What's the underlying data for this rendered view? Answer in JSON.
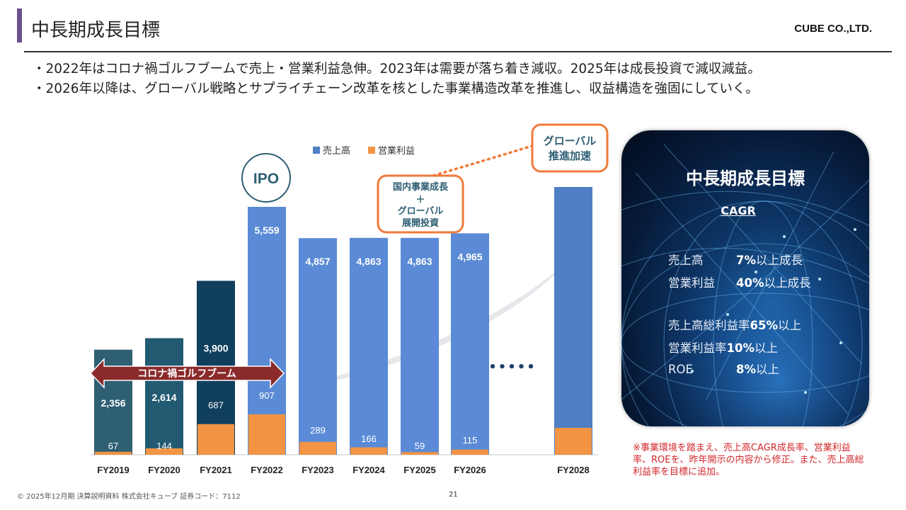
{
  "header": {
    "title": "中長期成長目標",
    "company": "CUBE CO.,LTD."
  },
  "bullets": [
    "・2022年はコロナ禍ゴルフブームで売上・営業利益急伸。2023年は需要が落ち着き減収。2025年は成長投資で減収減益。",
    "・2026年以降は、グローバル戦略とサプライチェーン改革を核とした事業構造改革を推進し、収益構造を強固にしていく。"
  ],
  "chart_data": {
    "type": "bar",
    "categories": [
      "FY2019",
      "FY2020",
      "FY2021",
      "FY2022",
      "FY2023",
      "FY2024",
      "FY2025",
      "FY2026",
      "FY2028"
    ],
    "series": [
      {
        "name": "売上高",
        "values": [
          2356,
          2614,
          3900,
          5559,
          4857,
          4863,
          4863,
          4965,
          null
        ],
        "labels": [
          "2,356",
          "2,614",
          "3,900",
          "5,559",
          "4,857",
          "4,863",
          "4,863",
          "4,965",
          ""
        ]
      },
      {
        "name": "営業利益",
        "values": [
          67,
          144,
          687,
          907,
          289,
          166,
          59,
          115,
          null
        ],
        "labels": [
          "67",
          "144",
          "687",
          "907",
          "289",
          "166",
          "59",
          "115",
          ""
        ]
      }
    ],
    "legend": "top",
    "bar_colors": [
      "#2e5f73",
      "#225a72",
      "#0f3f5c",
      "#5b8bd6",
      "#5b8bd6",
      "#5b8bd6",
      "#5b8bd6",
      "#5b8bd6",
      "#4e7fc4"
    ],
    "profit_color": "#f29443",
    "annotations": {
      "ipo": "IPO",
      "boom": "コロナ禍ゴルフブーム",
      "domestic": [
        "国内事業成長",
        "＋",
        "グローバル",
        "展開投資"
      ],
      "global": [
        "グローバル",
        "推進加速"
      ],
      "dots": "•••••"
    },
    "colors": {
      "orange": "#f07a3a",
      "ipo": "#2e5f73",
      "boom": "#8a2a2a",
      "text_dark": "#2e5f73"
    }
  },
  "panel": {
    "title": "中長期成長目標",
    "subtitle": "CAGR",
    "metrics": [
      {
        "label": "売上高",
        "value": "7%",
        "suffix": "以上成長"
      },
      {
        "label": "営業利益",
        "value": "40%",
        "suffix": "以上成長"
      },
      {
        "label": "売上高総利益率",
        "value": "65%",
        "suffix": "以上"
      },
      {
        "label": "営業利益率",
        "value": "10%",
        "suffix": "以上"
      },
      {
        "label": "ROE",
        "value": "8%",
        "suffix": "以上"
      }
    ]
  },
  "note": "※事業環境を踏まえ、売上高CAGR成長率、営業利益率、ROEを、昨年開示の内容から修正。また、売上高総利益率を目標に追加。",
  "footer": {
    "text": "© 2025年12月期 決算説明資料 株式会社キューブ 証券コード：7112",
    "page": "21"
  }
}
